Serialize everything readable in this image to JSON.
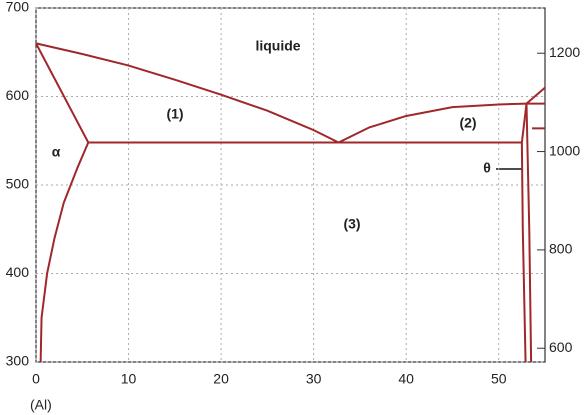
{
  "chart_data": {
    "type": "line",
    "xlim": [
      0,
      55
    ],
    "xticks": [
      0,
      10,
      20,
      30,
      40,
      50
    ],
    "ylim": [
      300,
      700
    ],
    "yticks": [
      300,
      400,
      500,
      600,
      700
    ],
    "y2lim": [
      572,
      1292
    ],
    "y2ticks": [
      600,
      800,
      1000,
      1200
    ],
    "x_label": "(Al)",
    "grid": true,
    "annotations": [
      "liquide",
      "(1)",
      "(2)",
      "(3)",
      "α",
      "θ"
    ],
    "series": [
      {
        "color": "#a0282a",
        "x": [
          0,
          5,
          10,
          15,
          20,
          25,
          30,
          32.7
        ],
        "values": [
          660,
          648,
          635,
          619,
          602,
          584,
          562,
          548
        ]
      },
      {
        "color": "#a0282a",
        "x": [
          32.7,
          36,
          40,
          45,
          50,
          53
        ],
        "values": [
          548,
          565,
          578,
          588,
          591,
          592
        ]
      },
      {
        "color": "#a0282a",
        "x": [
          53,
          55
        ],
        "values": [
          592,
          592
        ]
      },
      {
        "color": "#a0282a",
        "x": [
          53,
          55
        ],
        "values": [
          592,
          610
        ]
      },
      {
        "color": "#a0282a",
        "x": [
          0,
          5.65
        ],
        "values": [
          660,
          548
        ]
      },
      {
        "color": "#a0282a",
        "x": [
          5.65,
          52.5
        ],
        "values": [
          548,
          548
        ]
      },
      {
        "color": "#a0282a",
        "x": [
          5.65,
          4.5,
          3,
          2,
          1.2,
          0.6,
          0.5
        ],
        "values": [
          548,
          520,
          480,
          440,
          400,
          350,
          300
        ]
      },
      {
        "color": "#a0282a",
        "x": [
          52.5,
          53
        ],
        "values": [
          548,
          592
        ]
      },
      {
        "color": "#a0282a",
        "x": [
          52.5,
          52.6,
          52.9
        ],
        "values": [
          548,
          450,
          300
        ]
      },
      {
        "color": "#a0282a",
        "x": [
          53,
          53.3,
          53.5
        ],
        "values": [
          592,
          450,
          300
        ]
      },
      {
        "color": "#a0282a",
        "x": [
          53.6,
          55
        ],
        "values": [
          564,
          564
        ]
      }
    ]
  }
}
